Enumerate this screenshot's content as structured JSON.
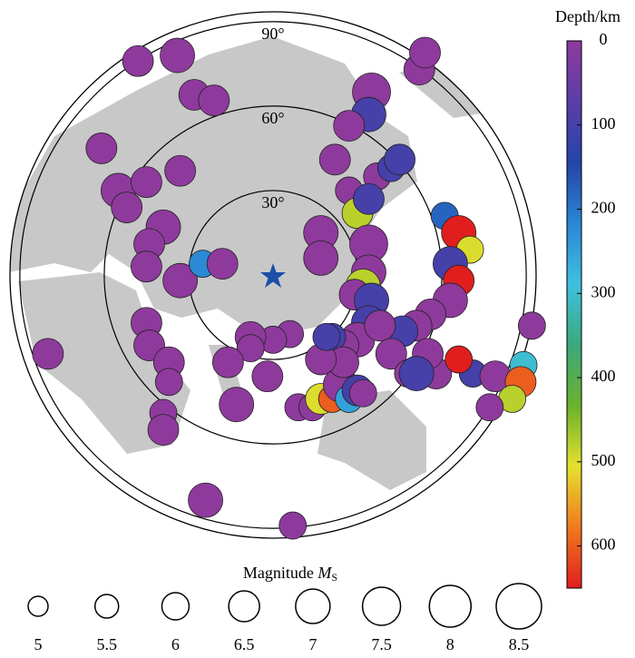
{
  "chart_data": {
    "type": "polar-scatter",
    "xlim": [
      -93.5,
      93.5
    ],
    "ylim": [
      -93.5,
      93.5
    ],
    "rticks": [
      {
        "value": 30,
        "label": "30°"
      },
      {
        "value": 60,
        "label": "60°"
      },
      {
        "value": 90,
        "label": "90°"
      }
    ],
    "x": [
      -48,
      -34,
      -28,
      -21,
      35,
      34,
      27,
      52,
      54,
      -61,
      -55,
      -45,
      -33,
      -52,
      -39,
      -44,
      -45,
      -33,
      -25,
      -18,
      17,
      17,
      22,
      27,
      30,
      34,
      34,
      32,
      29,
      35,
      34,
      30,
      25,
      21,
      37,
      34,
      42,
      45,
      61,
      66,
      70,
      63,
      66,
      63,
      56,
      51,
      46,
      38,
      42,
      48,
      58,
      71,
      79,
      92,
      89,
      88,
      85,
      77,
      55,
      66,
      51,
      6,
      0,
      -8,
      -8,
      -16,
      -13,
      -2,
      9,
      14,
      17,
      21,
      24,
      27,
      30,
      32,
      25,
      17,
      19,
      -45,
      -44,
      -37,
      -37,
      -39,
      -39,
      -80,
      -24,
      7
    ],
    "y": [
      76,
      78,
      64,
      62,
      65,
      57,
      53,
      73,
      79,
      45,
      30,
      33,
      37,
      24,
      17,
      11,
      3,
      -2,
      4,
      4,
      15,
      6,
      41,
      30,
      22,
      11,
      1,
      -4,
      -7,
      -9,
      -17,
      -23,
      -25,
      -22,
      35,
      27,
      38,
      41,
      21,
      15,
      9,
      4,
      -2,
      -9,
      -14,
      -18,
      -20,
      -18,
      -28,
      -35,
      -35,
      -35,
      -36,
      -18,
      -32,
      -38,
      -44,
      -47,
      -28,
      -30,
      -35,
      -21,
      -23,
      -22,
      -26,
      -31,
      -46,
      -36,
      -47,
      -47,
      -44,
      -44,
      -39,
      -44,
      -41,
      -42,
      -31,
      -30,
      -22,
      -17,
      -25,
      -31,
      -38,
      -49,
      -55,
      -28,
      -80,
      -89
    ],
    "depth": [
      0,
      0,
      0,
      0,
      0,
      100,
      0,
      0,
      0,
      0,
      0,
      0,
      0,
      0,
      0,
      0,
      0,
      0,
      220,
      0,
      0,
      0,
      0,
      0,
      480,
      0,
      0,
      480,
      0,
      100,
      100,
      0,
      0,
      100,
      0,
      100,
      100,
      100,
      180,
      650,
      500,
      100,
      650,
      0,
      0,
      0,
      100,
      0,
      0,
      0,
      0,
      100,
      0,
      0,
      300,
      600,
      480,
      0,
      0,
      650,
      100,
      0,
      0,
      0,
      0,
      0,
      0,
      0,
      0,
      0,
      500,
      600,
      0,
      250,
      100,
      0,
      0,
      0,
      100,
      0,
      0,
      0,
      0,
      0,
      0,
      0,
      0,
      0
    ],
    "magnitude": [
      6.5,
      7,
      6.5,
      6.5,
      7.5,
      7,
      6.5,
      6.5,
      6.5,
      6.5,
      7,
      6.5,
      6.5,
      6.5,
      7,
      6.5,
      6.5,
      7,
      6,
      6.5,
      7,
      7,
      6.5,
      6,
      6.5,
      7.5,
      7,
      7,
      6.5,
      7,
      7,
      7,
      6.5,
      6,
      6,
      6.5,
      6,
      6.5,
      6,
      7,
      6,
      7,
      6.5,
      7,
      6.5,
      6.5,
      6.5,
      6.5,
      6.5,
      6,
      6.5,
      6,
      6.5,
      6,
      6,
      6.5,
      6,
      6,
      6.5,
      6,
      7,
      6,
      6,
      6.5,
      6,
      6.5,
      7,
      6.5,
      6,
      6,
      6.5,
      6,
      7,
      6,
      6.5,
      6,
      6.5,
      6.5,
      6,
      6.5,
      6.5,
      6.5,
      6,
      6,
      6.5,
      6.5,
      7,
      6
    ],
    "colorbar": {
      "label": "Depth/km",
      "lim": [
        0,
        650
      ],
      "ticks": [
        0,
        100,
        200,
        300,
        400,
        500,
        600
      ],
      "colors": [
        "#8e3a9c",
        "#5b3ea8",
        "#2444aa",
        "#2a86d6",
        "#3fc0df",
        "#3aa97c",
        "#6ab22c",
        "#e6e02e",
        "#f07a1e",
        "#e01e1e"
      ]
    },
    "size_legend": {
      "title": "Magnitude",
      "symbol": "M",
      "subscript": "S",
      "values": [
        5,
        5.5,
        6,
        6.5,
        7,
        7.5,
        8,
        8.5
      ]
    }
  }
}
